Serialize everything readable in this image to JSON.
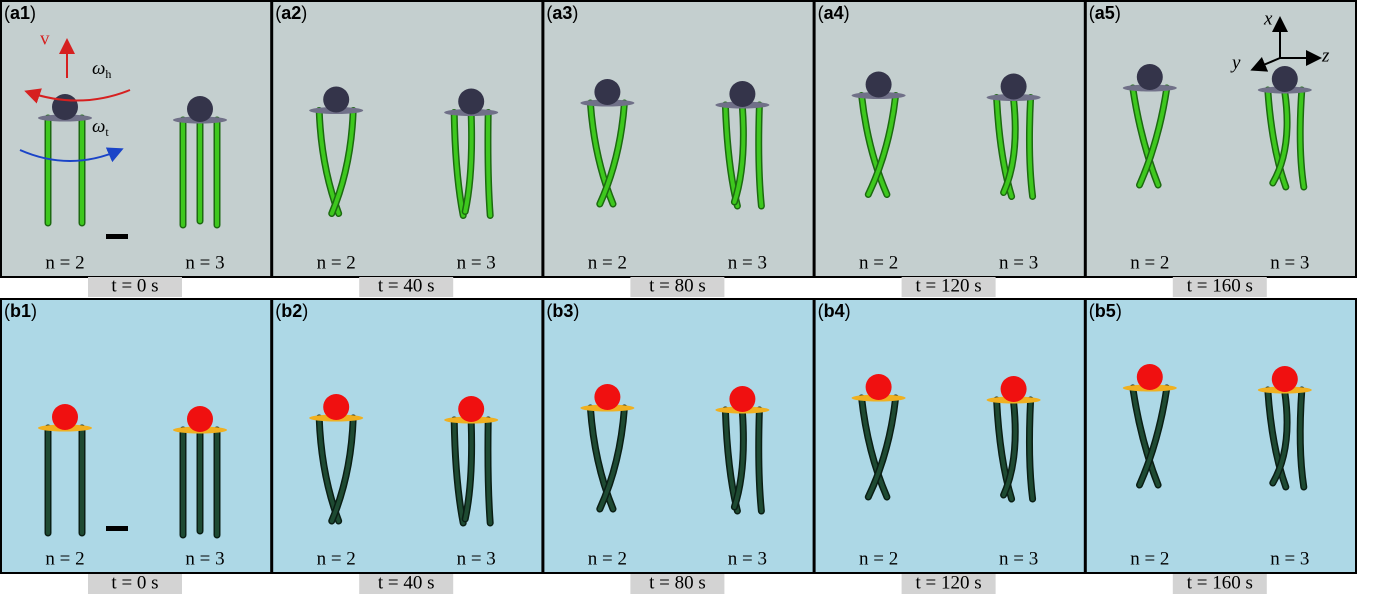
{
  "paren_open": "(",
  "paren_close": ")",
  "rows": [
    {
      "panels": [
        {
          "id": "a1",
          "n_left": "n = 2",
          "n_right": "n = 3",
          "time": "t = 0 s"
        },
        {
          "id": "a2",
          "n_left": "n = 2",
          "n_right": "n = 3",
          "time": "t = 40 s"
        },
        {
          "id": "a3",
          "n_left": "n = 2",
          "n_right": "n = 3",
          "time": "t = 80 s"
        },
        {
          "id": "a4",
          "n_left": "n = 2",
          "n_right": "n = 3",
          "time": "t = 120 s"
        },
        {
          "id": "a5",
          "n_left": "n = 2",
          "n_right": "n = 3",
          "time": "t = 160 s"
        }
      ]
    },
    {
      "panels": [
        {
          "id": "b1",
          "n_left": "n = 2",
          "n_right": "n = 3",
          "time": "t = 0 s"
        },
        {
          "id": "b2",
          "n_left": "n = 2",
          "n_right": "n = 3",
          "time": "t = 40 s"
        },
        {
          "id": "b3",
          "n_left": "n = 2",
          "n_right": "n = 3",
          "time": "t = 80 s"
        },
        {
          "id": "b4",
          "n_left": "n = 2",
          "n_right": "n = 3",
          "time": "t = 120 s"
        },
        {
          "id": "b5",
          "n_left": "n = 2",
          "n_right": "n = 3",
          "time": "t = 160 s"
        }
      ]
    }
  ],
  "annotations": {
    "v": "v",
    "omega": "ω",
    "sub_h": "h",
    "sub_t": "t"
  },
  "axes": {
    "x": "x",
    "y": "y",
    "z": "z"
  }
}
